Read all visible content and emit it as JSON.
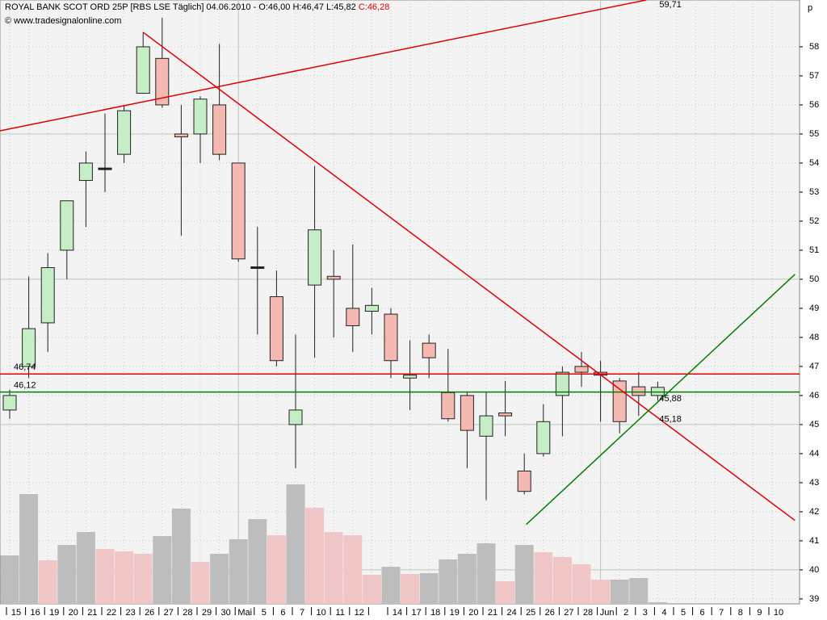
{
  "chart_data": {
    "type": "candlestick",
    "title": "ROYAL BANK SCOT ORD 25P [RBS LSE  Täglich] 04.06.2010 - O:46,00 H:46,47 L:45,82",
    "title_close": "C:46,28",
    "subtitle": "© www.tradesignalonline.com",
    "y_unit": "p",
    "categories": [
      "15",
      "16",
      "19",
      "20",
      "21",
      "22",
      "23",
      "26",
      "27",
      "28",
      "29",
      "30",
      "Mai",
      "5",
      "6",
      "7",
      "10",
      "11",
      "12",
      null,
      "14",
      "17",
      "18",
      "19",
      "20",
      "21",
      "24",
      "25",
      "26",
      "27",
      "28",
      "Jun",
      "2",
      "3",
      "4",
      "5",
      "6",
      "7",
      "8",
      "9",
      "10"
    ],
    "open": [
      45.5,
      47.0,
      48.5,
      51.0,
      53.4,
      53.8,
      54.3,
      56.4,
      57.6,
      55.0,
      55.0,
      56.0,
      54.0,
      50.4,
      49.4,
      45.0,
      49.8,
      50.1,
      49.0,
      48.9,
      48.8,
      46.6,
      47.8,
      46.1,
      46.0,
      44.6,
      45.4,
      43.4,
      44.0,
      46.0,
      47.0,
      46.8,
      46.5,
      46.3,
      46.0,
      null,
      null,
      null,
      null,
      null,
      null
    ],
    "high": [
      46.2,
      50.1,
      50.9,
      52.7,
      54.4,
      55.7,
      56.0,
      58.5,
      59.0,
      56.0,
      56.3,
      58.1,
      54.0,
      51.8,
      50.3,
      48.1,
      53.9,
      51.0,
      51.2,
      49.7,
      49.0,
      47.9,
      48.1,
      47.6,
      46.1,
      46.1,
      46.5,
      44.0,
      45.7,
      47.0,
      47.5,
      47.2,
      46.6,
      46.8,
      46.47,
      null,
      null,
      null,
      null,
      null,
      null
    ],
    "low": [
      45.2,
      46.6,
      47.5,
      50.0,
      51.8,
      53.0,
      54.0,
      56.4,
      55.9,
      51.5,
      54.0,
      54.1,
      50.6,
      48.1,
      47.0,
      43.5,
      47.3,
      48.0,
      47.5,
      48.1,
      46.6,
      45.5,
      46.6,
      45.1,
      43.5,
      42.4,
      44.6,
      42.6,
      43.9,
      44.6,
      46.3,
      45.1,
      44.7,
      45.3,
      45.82,
      null,
      null,
      null,
      null,
      null,
      null
    ],
    "close": [
      46.0,
      48.3,
      50.4,
      52.7,
      54.0,
      53.8,
      55.8,
      58.0,
      56.0,
      54.9,
      56.2,
      54.3,
      50.7,
      50.4,
      47.2,
      45.5,
      51.7,
      50.0,
      48.4,
      49.1,
      47.2,
      46.7,
      47.3,
      45.2,
      44.8,
      45.3,
      45.3,
      42.7,
      45.1,
      46.8,
      46.8,
      46.7,
      45.1,
      46.0,
      46.28,
      null,
      null,
      null,
      null,
      null,
      null
    ],
    "up_color": "#c6eec6",
    "down_color": "#f4b9b1",
    "volume": {
      "values": [
        60,
        136,
        54,
        73,
        89,
        68,
        65,
        62,
        84,
        118,
        52,
        62,
        80,
        105,
        85,
        148,
        119,
        89,
        85,
        36,
        46,
        37,
        38,
        55,
        62,
        75,
        28,
        73,
        64,
        58,
        49,
        30,
        30,
        32,
        2,
        null,
        null,
        null,
        null,
        null,
        null
      ],
      "colors": [
        "#bdbdbd",
        "#bdbdbd",
        "#f0c6c6",
        "#bdbdbd",
        "#bdbdbd",
        "#f0c6c6",
        "#f0c6c6",
        "#f0c6c6",
        "#bdbdbd",
        "#bdbdbd",
        "#f0c6c6",
        "#bdbdbd",
        "#bdbdbd",
        "#bdbdbd",
        "#f0c6c6",
        "#bdbdbd",
        "#f0c6c6",
        "#f0c6c6",
        "#f0c6c6",
        "#f0c6c6",
        "#bdbdbd",
        "#f0c6c6",
        "#bdbdbd",
        "#bdbdbd",
        "#bdbdbd",
        "#bdbdbd",
        "#f0c6c6",
        "#bdbdbd",
        "#f0c6c6",
        "#f0c6c6",
        "#f0c6c6",
        "#f0c6c6",
        "#bdbdbd",
        "#bdbdbd",
        "#bdbdbd",
        null,
        null,
        null,
        null,
        null,
        null
      ]
    },
    "levels": [
      {
        "value": 46.74,
        "label": "46,74",
        "color": "#e00000"
      },
      {
        "value": 46.12,
        "label": "46,12",
        "color": "#008000"
      }
    ],
    "trendlines": [
      {
        "x": [
          -0.5,
          33.4
        ],
        "values": [
          55.11,
          59.61
        ],
        "color": "#e00000",
        "end": {
          "value": 59.71,
          "label": "59,71"
        }
      },
      {
        "x": [
          7.0,
          41.2
        ],
        "values": [
          58.5,
          41.7
        ],
        "color": "#e00000",
        "end": {
          "value": 45.18,
          "label": "45,18"
        }
      },
      {
        "x": [
          27.1,
          41.2
        ],
        "values": [
          41.56,
          50.17
        ],
        "color": "#008000",
        "end": {
          "value": 45.88,
          "label": "45,88"
        }
      }
    ],
    "ylim": [
      38.83,
      59.61
    ],
    "yticks": [
      39,
      40,
      41,
      42,
      43,
      44,
      45,
      46,
      47,
      48,
      49,
      50,
      51,
      52,
      53,
      54,
      55,
      56,
      57,
      58
    ],
    "major_yticks": [
      40,
      45,
      50,
      55
    ],
    "major_xticks": [
      12,
      31
    ],
    "grid": true
  }
}
